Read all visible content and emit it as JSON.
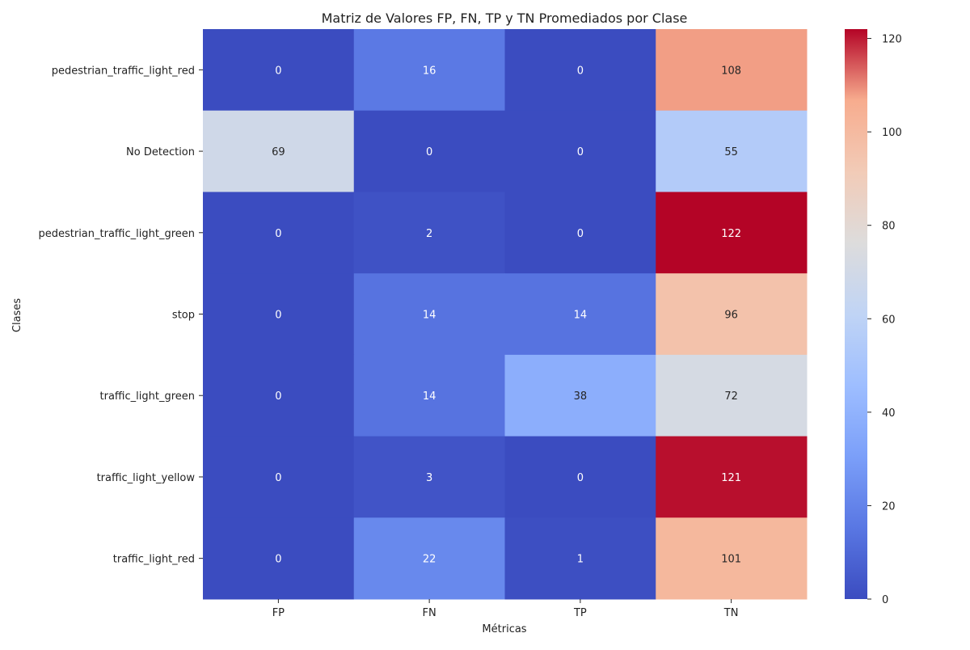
{
  "chart_data": {
    "type": "heatmap",
    "title": "Matriz de Valores FP, FN, TP y TN Promediados por Clase",
    "xlabel": "Métricas",
    "ylabel": "Clases",
    "x_categories": [
      "FP",
      "FN",
      "TP",
      "TN"
    ],
    "y_categories": [
      "pedestrian_traffic_light_red",
      "No Detection",
      "pedestrian_traffic_light_green",
      "stop",
      "traffic_light_green",
      "traffic_light_yellow",
      "traffic_light_red"
    ],
    "values": [
      [
        0,
        16,
        0,
        108
      ],
      [
        69,
        0,
        0,
        55
      ],
      [
        0,
        2,
        0,
        122
      ],
      [
        0,
        14,
        14,
        96
      ],
      [
        0,
        14,
        38,
        72
      ],
      [
        0,
        3,
        0,
        121
      ],
      [
        0,
        22,
        1,
        101
      ]
    ],
    "colorscale": "coolwarm",
    "vmin": 0,
    "vmax": 122,
    "colorbar_ticks": [
      0,
      20,
      40,
      60,
      80,
      100,
      120
    ]
  }
}
